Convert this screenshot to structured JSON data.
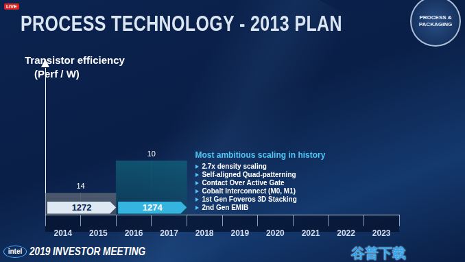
{
  "chart_data": {
    "type": "bar",
    "title": "PROCESS TECHNOLOGY - 2013 PLAN",
    "y_label": [
      "Transistor efficiency",
      "(Perf / W)"
    ],
    "categories": [
      "2014",
      "2015",
      "2016",
      "2017",
      "2018",
      "2019",
      "2020",
      "2021",
      "2022",
      "2023"
    ],
    "values": [
      15,
      15,
      37,
      37,
      null,
      null,
      null,
      null,
      null,
      null
    ],
    "colors": [
      "#dde8f2",
      "#dde8f2",
      "#1c9cc4",
      "#1c9cc4",
      "#1c9cc4",
      "#1c9cc4",
      "#1c9cc4",
      "#1c9cc4",
      "#1c9cc4",
      "#1c9cc4"
    ],
    "ylim": [
      0,
      100
    ],
    "grid": false,
    "tick_labels": "x",
    "nodes": [
      {
        "label": "14",
        "process": "1272",
        "categories": [
          "2014",
          "2015"
        ],
        "color": "#dde8f2"
      },
      {
        "label": "10",
        "process": "1274",
        "categories": [
          "2016",
          "2017"
        ],
        "color": "#35b4e0"
      }
    ],
    "callout": {
      "heading": "Most ambitious scaling in history",
      "items": [
        "2.7x density scaling",
        "Self-aligned Quad-patterning",
        "Contact Over Active Gate",
        "Cobalt Interconnect (M0, M1)",
        "1st Gen Foveros 3D Stacking",
        "2nd Gen EMIB"
      ]
    }
  },
  "slide": {
    "live": "LIVE",
    "badge": "PROCESS & PACKAGING",
    "logo": "intel",
    "footer": "2019 INVESTOR MEETING",
    "watermark": "谷普下载"
  }
}
